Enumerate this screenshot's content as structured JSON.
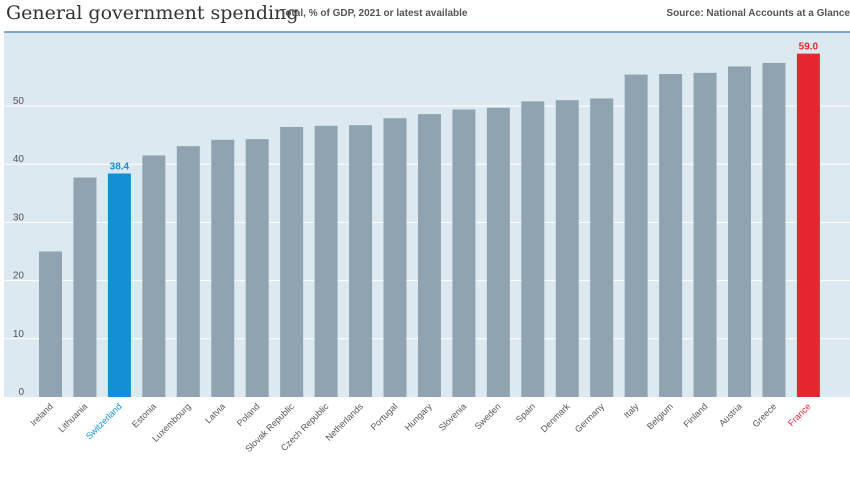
{
  "header": {
    "title": "General government spending",
    "subtitle": "Total, % of GDP, 2021 or latest available",
    "source": "Source: National Accounts at a Glance"
  },
  "colors": {
    "bar": "#8fa4b0",
    "highlight_blue": "#138fd8",
    "highlight_red": "#e3282f",
    "plot_bg": "#dde9f1",
    "grid": "#ffffff",
    "top_rule": "#5b8fb9"
  },
  "chart_data": {
    "type": "bar",
    "title": "General government spending",
    "subtitle": "Total, % of GDP, 2021 or latest available",
    "xlabel": "",
    "ylabel": "",
    "ylim": [
      0,
      60
    ],
    "yticks": [
      0,
      10,
      20,
      30,
      40,
      50
    ],
    "grid": true,
    "categories": [
      "Ireland",
      "Lithuania",
      "Switzerland",
      "Estonia",
      "Luxembourg",
      "Latvia",
      "Poland",
      "Slovak Republic",
      "Czech Republic",
      "Netherlands",
      "Portugal",
      "Hungary",
      "Slovenia",
      "Sweden",
      "Spain",
      "Denmark",
      "Germany",
      "Italy",
      "Belgium",
      "Finland",
      "Austria",
      "Greece",
      "France"
    ],
    "values": [
      25.0,
      37.7,
      38.4,
      41.5,
      43.1,
      44.2,
      44.3,
      46.4,
      46.6,
      46.7,
      47.9,
      48.6,
      49.4,
      49.7,
      50.8,
      51.0,
      51.3,
      55.4,
      55.5,
      55.7,
      56.8,
      57.4,
      59.0
    ],
    "highlights": [
      {
        "category": "Switzerland",
        "color": "#138fd8",
        "label": "38.4"
      },
      {
        "category": "France",
        "color": "#e3282f",
        "label": "59.0"
      }
    ]
  }
}
